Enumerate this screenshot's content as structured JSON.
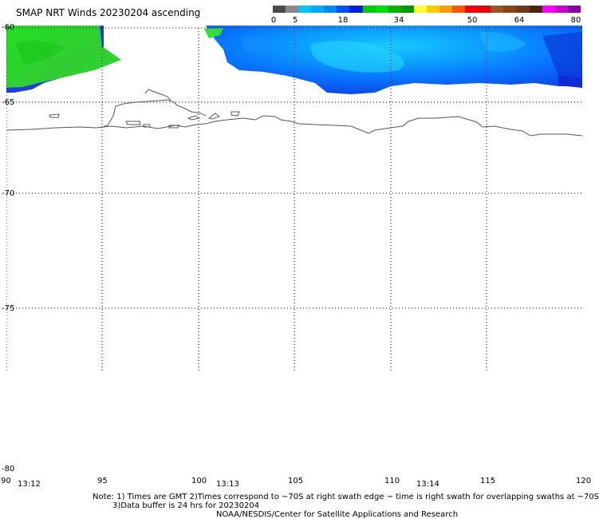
{
  "header": {
    "title": "SMAP NRT Winds 20230204 ascending"
  },
  "colorbar": {
    "segments": [
      {
        "color": "#4a4a4a"
      },
      {
        "color": "#8a8a8a"
      },
      {
        "color": "#00c8ff"
      },
      {
        "color": "#00aaff"
      },
      {
        "color": "#0088ff"
      },
      {
        "color": "#0050ff"
      },
      {
        "color": "#0020dd"
      },
      {
        "color": "#00cc00"
      },
      {
        "color": "#00e000"
      },
      {
        "color": "#00b400"
      },
      {
        "color": "#009a00"
      },
      {
        "color": "#ffff33"
      },
      {
        "color": "#ffcc00"
      },
      {
        "color": "#ff9900"
      },
      {
        "color": "#ff5500"
      },
      {
        "color": "#ff0000"
      },
      {
        "color": "#e60000"
      },
      {
        "color": "#a0522d"
      },
      {
        "color": "#8b4513"
      },
      {
        "color": "#6b3a1a"
      },
      {
        "color": "#4a2510"
      },
      {
        "color": "#ff00ff"
      },
      {
        "color": "#cc00cc"
      },
      {
        "color": "#8800aa"
      }
    ],
    "labels": [
      "0",
      "5",
      "18",
      "34",
      "50",
      "64",
      "80"
    ]
  },
  "map": {
    "lat_labels": [
      "-60",
      "-65",
      "-70",
      "-75",
      "-80"
    ],
    "lon_labels": [
      "90",
      "95",
      "100",
      "105",
      "110",
      "115",
      "120"
    ],
    "time_labels": [
      "13:12",
      "13:13",
      "13:14"
    ],
    "colors": {
      "coast": "#555555",
      "grid": "#000000",
      "green_wind": "#22dd22",
      "blue_low": "#1040e8",
      "blue_mid": "#0a6cff",
      "cyan": "#18c8ff"
    }
  },
  "notes": {
    "line1": "Note: 1) Times are GMT 2)Times correspond to ~70S at right swath edge ~ time is right swath for overlapping swaths at ~70S",
    "line2": "3)Data buffer is 24 hrs for 20230204",
    "line3": "NOAA/NESDIS/Center for Satellite Applications and Research"
  }
}
